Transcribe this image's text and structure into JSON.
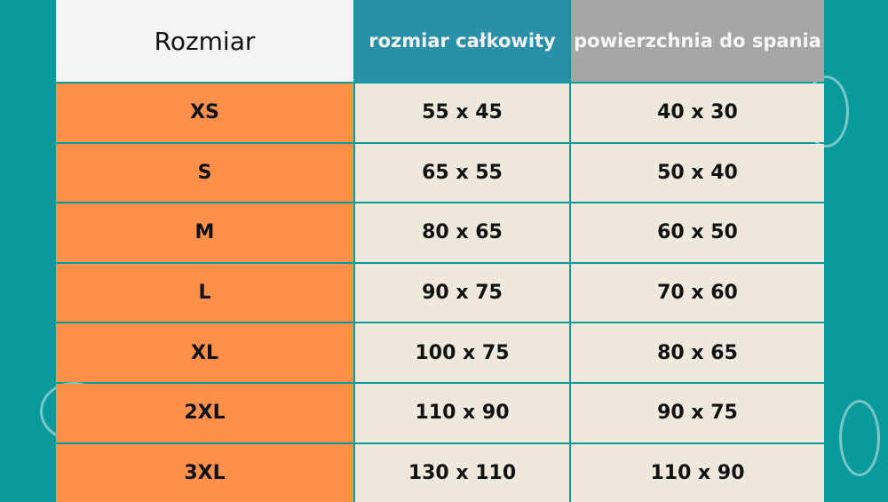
{
  "colors": {
    "background": "#0b9a9b",
    "size_column": "#fd914c",
    "value_cells": "#eee9dc",
    "header_total": "#2a8fa8",
    "header_sleep": "#a6a6a6"
  },
  "header": {
    "size": "Rozmiar",
    "total": "rozmiar całkowity",
    "sleep": "powierzchnia do spania"
  },
  "rows": [
    {
      "size": "XS",
      "total": "55 x 45",
      "sleep": "40 x 30"
    },
    {
      "size": "S",
      "total": "65 x 55",
      "sleep": "50 x 40"
    },
    {
      "size": "M",
      "total": "80 x 65",
      "sleep": "60 x 50"
    },
    {
      "size": "L",
      "total": "90 x 75",
      "sleep": "70 x 60"
    },
    {
      "size": "XL",
      "total": "100 x 75",
      "sleep": "80 x 65"
    },
    {
      "size": "2XL",
      "total": "110 x 90",
      "sleep": "90 x 75"
    },
    {
      "size": "3XL",
      "total": "130 x 110",
      "sleep": "110 x 90"
    }
  ]
}
